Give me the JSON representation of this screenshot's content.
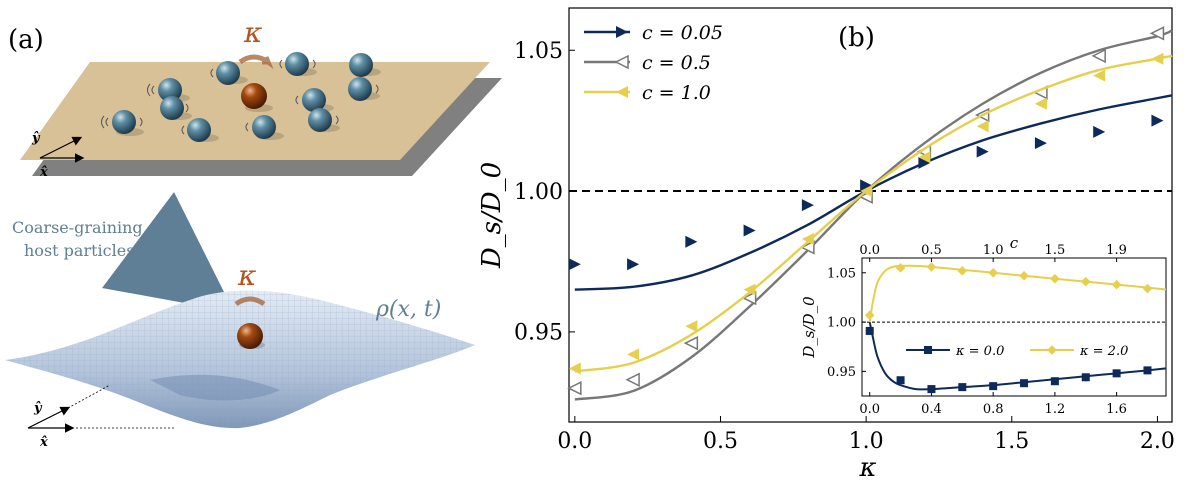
{
  "panel_a": {
    "label": "(a)",
    "kappa_top": "κ",
    "kappa_bottom": "κ",
    "coarse_text_line1": "Coarse-graining",
    "coarse_text_line2": "host particles",
    "rho_label": "ρ(x, t)",
    "y_axis_top": "ŷ",
    "x_axis_top": "x̂",
    "y_axis_bottom": "ŷ",
    "x_axis_bottom": "x̂"
  },
  "panel_b": {
    "label": "(b)"
  },
  "colors": {
    "c005": "#0d2a5a",
    "c05": "#777777",
    "c10": "#e6cf4d",
    "plane": "#d8c097",
    "plane_shadow": "#7a7a7a",
    "host_particle": "#4f7f95",
    "tracer": "#a44a12",
    "surface": "#b9c8dd",
    "coarse_text": "#5e7f95"
  },
  "chart_data": [
    {
      "type": "line",
      "xlabel": "κ",
      "ylabel": "D_s/D_0",
      "xlim": [
        -0.02,
        2.05
      ],
      "ylim": [
        0.918,
        1.065
      ],
      "xticks": [
        "0.0",
        "0.5",
        "1.0",
        "1.5",
        "2.0"
      ],
      "yticks": [
        "0.95",
        "1.00",
        "1.05"
      ],
      "reference_line": 1.0,
      "legend_placement": "top-left",
      "series": [
        {
          "name": "c = 0.05",
          "color_key": "c005",
          "marker": "triangle-right",
          "points_x": [
            0.0,
            0.2,
            0.4,
            0.6,
            0.8,
            1.0,
            1.2,
            1.4,
            1.6,
            1.8,
            2.0
          ],
          "points_y": [
            0.974,
            0.974,
            0.982,
            0.986,
            0.995,
            1.002,
            1.01,
            1.014,
            1.017,
            1.021,
            1.025
          ],
          "curve_x": [
            0.0,
            0.2,
            0.4,
            0.6,
            0.8,
            1.0,
            1.2,
            1.4,
            1.6,
            1.8,
            2.0,
            2.05
          ],
          "curve_y": [
            0.965,
            0.966,
            0.97,
            0.978,
            0.988,
            1.0,
            1.01,
            1.018,
            1.024,
            1.029,
            1.033,
            1.034
          ]
        },
        {
          "name": "c = 0.5",
          "color_key": "c05",
          "marker": "triangle-left-open",
          "points_x": [
            0.0,
            0.2,
            0.4,
            0.6,
            0.8,
            1.0,
            1.2,
            1.4,
            1.6,
            1.8,
            2.0
          ],
          "points_y": [
            0.93,
            0.933,
            0.946,
            0.962,
            0.98,
            0.998,
            1.014,
            1.027,
            1.035,
            1.048,
            1.056
          ],
          "curve_x": [
            0.0,
            0.2,
            0.4,
            0.6,
            0.8,
            1.0,
            1.2,
            1.4,
            1.6,
            1.8,
            2.0,
            2.05
          ],
          "curve_y": [
            0.926,
            0.929,
            0.941,
            0.959,
            0.979,
            1.0,
            1.017,
            1.031,
            1.042,
            1.05,
            1.055,
            1.057
          ]
        },
        {
          "name": "c = 1.0",
          "color_key": "c10",
          "marker": "triangle-left",
          "points_x": [
            0.0,
            0.2,
            0.4,
            0.6,
            0.8,
            1.0,
            1.2,
            1.4,
            1.6,
            1.8,
            2.0
          ],
          "points_y": [
            0.937,
            0.942,
            0.952,
            0.965,
            0.983,
            1.0,
            1.012,
            1.023,
            1.031,
            1.041,
            1.047
          ],
          "curve_x": [
            0.0,
            0.2,
            0.4,
            0.6,
            0.8,
            1.0,
            1.2,
            1.4,
            1.6,
            1.8,
            2.0,
            2.05
          ],
          "curve_y": [
            0.936,
            0.939,
            0.949,
            0.964,
            0.982,
            1.0,
            1.015,
            1.027,
            1.036,
            1.043,
            1.047,
            1.048
          ]
        }
      ]
    },
    {
      "type": "line",
      "xlabel": "c",
      "ylabel": "D_s/D_0",
      "xlim": [
        -0.05,
        1.92
      ],
      "ylim": [
        0.925,
        1.065
      ],
      "xticks": [
        "0.0",
        "0.4",
        "0.8",
        "1.2",
        "1.6"
      ],
      "xticks_top": [
        "0.0",
        "0.5",
        "1.0",
        "1.5",
        "1.9"
      ],
      "yticks": [
        "0.95",
        "1.00",
        "1.05"
      ],
      "reference_line": 1.0,
      "legend_placement": "center",
      "series": [
        {
          "name": "κ = 0.0",
          "color_key": "c005",
          "marker": "square",
          "points_x": [
            0.0,
            0.2,
            0.4,
            0.6,
            0.8,
            1.0,
            1.2,
            1.4,
            1.6,
            1.8
          ],
          "points_y": [
            0.991,
            0.941,
            0.932,
            0.934,
            0.935,
            0.938,
            0.94,
            0.944,
            0.948,
            0.951
          ],
          "curve_x": [
            0.0,
            0.02,
            0.05,
            0.1,
            0.15,
            0.2,
            0.3,
            0.4,
            0.6,
            0.8,
            1.0,
            1.2,
            1.4,
            1.6,
            1.8,
            1.92
          ],
          "curve_y": [
            1.0,
            0.985,
            0.965,
            0.948,
            0.94,
            0.936,
            0.932,
            0.932,
            0.934,
            0.936,
            0.939,
            0.942,
            0.945,
            0.948,
            0.951,
            0.953
          ]
        },
        {
          "name": "κ = 2.0",
          "color_key": "c10",
          "marker": "diamond",
          "points_x": [
            0.0,
            0.2,
            0.4,
            0.6,
            0.8,
            1.0,
            1.2,
            1.4,
            1.6,
            1.8
          ],
          "points_y": [
            1.007,
            1.055,
            1.056,
            1.052,
            1.05,
            1.047,
            1.044,
            1.041,
            1.038,
            1.034
          ],
          "curve_x": [
            0.0,
            0.02,
            0.05,
            0.1,
            0.15,
            0.2,
            0.3,
            0.4,
            0.6,
            0.8,
            1.0,
            1.2,
            1.4,
            1.6,
            1.8,
            1.92
          ],
          "curve_y": [
            1.0,
            1.02,
            1.04,
            1.052,
            1.056,
            1.057,
            1.057,
            1.056,
            1.053,
            1.05,
            1.047,
            1.044,
            1.041,
            1.038,
            1.035,
            1.033
          ]
        }
      ]
    }
  ]
}
